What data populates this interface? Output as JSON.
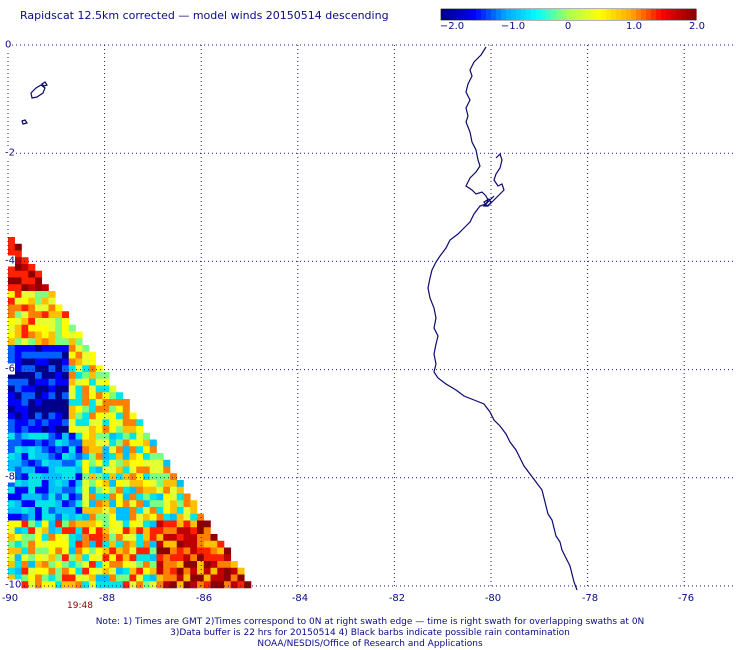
{
  "title": "Rapidscat 12.5km corrected — model winds 20150514 descending",
  "colorbar": {
    "ticks": [
      "−2.0",
      "−1.0",
      "0",
      "1.0",
      "2.0"
    ],
    "values": [
      -2.0,
      -1.0,
      0,
      1.0,
      2.0
    ],
    "colors": [
      "#00008b",
      "#0000ff",
      "#00aaff",
      "#00ffff",
      "#aaff55",
      "#ffff00",
      "#ffaa00",
      "#ff0000",
      "#8b0000"
    ]
  },
  "axes": {
    "x_ticks": [
      "-90",
      "-88",
      "-86",
      "-84",
      "-82",
      "-80",
      "-78",
      "-76"
    ],
    "y_ticks": [
      "0",
      "-2",
      "-4",
      "-6",
      "-8",
      "-10"
    ],
    "lon_range": [
      -90,
      -75.2
    ],
    "lat_range": [
      -10,
      0
    ],
    "grid": true
  },
  "swath_time": "19:48",
  "notes": [
    "Note: 1) Times are GMT 2)Times correspond to 0N at right swath edge — time is right swath for overlapping swaths at 0N",
    "3)Data buffer is 22 hrs for 20150514 4) Black barbs indicate possible rain contamination",
    "NOAA/NESDIS/Office of Research and Applications"
  ],
  "colors": {
    "text": "#0a0a8c",
    "grid": "#1a1a7a",
    "coast": "#0a0a6e",
    "time": "#8b0000"
  }
}
